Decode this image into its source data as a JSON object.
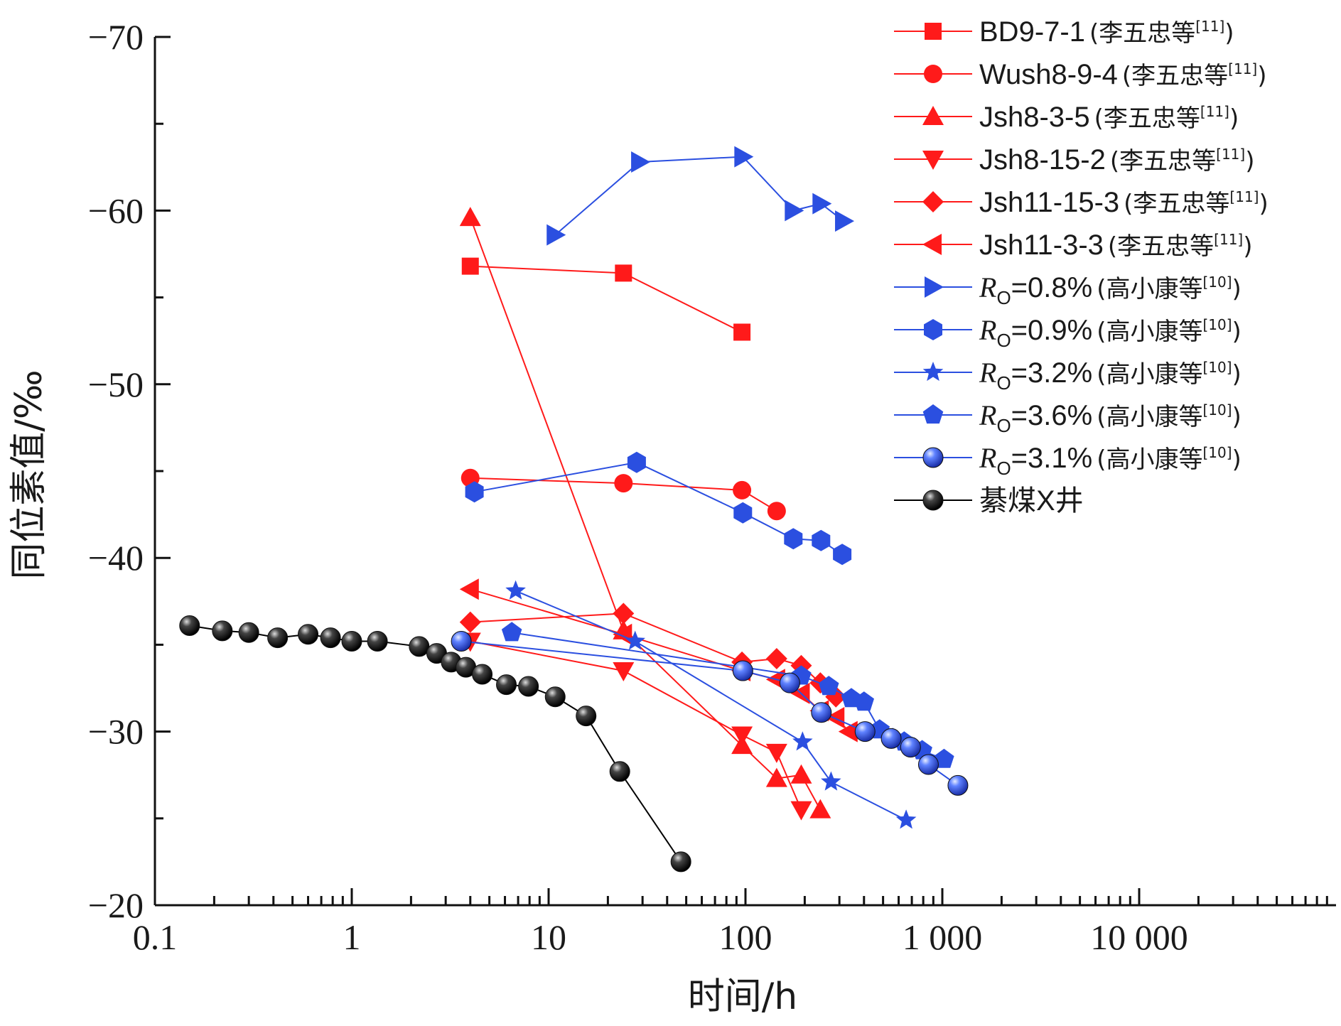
{
  "chart_data": {
    "type": "line",
    "xlabel": "时间/h",
    "ylabel": "同位素值/‰",
    "xscale": "log",
    "xlim": [
      0.1,
      100000
    ],
    "ylim": [
      -20,
      -70
    ],
    "y_inverted": true,
    "grid": false,
    "legend_position": "top-right",
    "x_tick_labels": [
      "0.1",
      "1",
      "10",
      "100",
      "1 000",
      "10 000"
    ],
    "y_tick_labels": [
      "−20",
      "−30",
      "−40",
      "−50",
      "−60",
      "−70"
    ],
    "colors": {
      "red": "#ff1a1a",
      "blue": "#2b4fe0",
      "black": "#000000"
    },
    "series": [
      {
        "label": "BD9-7-1",
        "ref": "(李五忠等[11])",
        "marker": "square",
        "color": "red",
        "x": [
          4,
          24,
          96
        ],
        "y": [
          -56.8,
          -56.4,
          -53.0
        ]
      },
      {
        "label": "Wush8-9-4",
        "ref": "(李五忠等[11])",
        "marker": "circle",
        "color": "red",
        "x": [
          4,
          24,
          96,
          144
        ],
        "y": [
          -44.6,
          -44.3,
          -43.9,
          -42.7
        ]
      },
      {
        "label": "Jsh8-3-5",
        "ref": "(李五忠等[11])",
        "marker": "triangle-up",
        "color": "red",
        "x": [
          4,
          24,
          96,
          144,
          192,
          240
        ],
        "y": [
          -59.6,
          -35.8,
          -29.2,
          -27.3,
          -27.5,
          -25.5
        ]
      },
      {
        "label": "Jsh8-15-2",
        "ref": "(李五忠等[11])",
        "marker": "triangle-down",
        "color": "red",
        "x": [
          4,
          24,
          96,
          144,
          192
        ],
        "y": [
          -35.2,
          -33.5,
          -29.8,
          -28.8,
          -25.5
        ]
      },
      {
        "label": "Jsh11-15-3",
        "ref": "(李五忠等[11])",
        "marker": "diamond",
        "color": "red",
        "x": [
          4,
          24,
          96,
          144,
          192,
          240,
          288
        ],
        "y": [
          -36.3,
          -36.8,
          -34.0,
          -34.2,
          -33.8,
          -32.8,
          -32.0
        ]
      },
      {
        "label": "Jsh11-3-3",
        "ref": "(李五忠等[11])",
        "marker": "triangle-left",
        "color": "red",
        "x": [
          4,
          24,
          96,
          144,
          192,
          240,
          288,
          336
        ],
        "y": [
          -38.2,
          -35.6,
          -33.5,
          -33.0,
          -32.2,
          -31.2,
          -30.8,
          -30.0
        ]
      },
      {
        "label": "=0.8%",
        "ref": "(高小康等[10])",
        "italic": "R",
        "sub": "O",
        "marker": "triangle-right",
        "color": "blue",
        "x": [
          10.8,
          29,
          97,
          175,
          242,
          315
        ],
        "y": [
          -58.6,
          -62.8,
          -63.1,
          -60.0,
          -60.4,
          -59.4
        ]
      },
      {
        "label": "=0.9%",
        "ref": "(高小康等[10])",
        "italic": "R",
        "sub": "O",
        "marker": "hexagon",
        "color": "blue",
        "x": [
          4.2,
          28,
          97,
          175,
          242,
          310
        ],
        "y": [
          -43.8,
          -45.5,
          -42.6,
          -41.1,
          -41.0,
          -40.2
        ]
      },
      {
        "label": "=3.2%",
        "ref": "(高小康等[10])",
        "italic": "R",
        "sub": "O",
        "marker": "star",
        "color": "blue",
        "x": [
          6.8,
          27.5,
          195,
          272,
          655
        ],
        "y": [
          -38.1,
          -35.2,
          -29.4,
          -27.1,
          -24.9
        ]
      },
      {
        "label": "=3.6%",
        "ref": "(高小康等[10])",
        "italic": "R",
        "sub": "O",
        "marker": "pentagon",
        "color": "blue",
        "x": [
          6.5,
          192,
          265,
          345,
          400,
          480,
          560,
          640,
          700,
          790,
          1020
        ],
        "y": [
          -35.7,
          -33.2,
          -32.6,
          -31.9,
          -31.7,
          -30.1,
          -29.6,
          -29.4,
          -29.1,
          -28.9,
          -28.4
        ]
      },
      {
        "label": "=3.1%",
        "ref": "(高小康等[10])",
        "italic": "R",
        "sub": "O",
        "marker": "sphere",
        "color": "blue",
        "x": [
          3.6,
          97,
          168,
          243,
          405,
          550,
          690,
          850,
          1200
        ],
        "y": [
          -35.2,
          -33.5,
          -32.8,
          -31.1,
          -30.0,
          -29.6,
          -29.1,
          -28.1,
          -26.9
        ]
      },
      {
        "label": "綦煤X井",
        "ref": "",
        "marker": "sphere",
        "color": "black",
        "x": [
          0.15,
          0.22,
          0.3,
          0.42,
          0.6,
          0.78,
          1.0,
          1.35,
          2.2,
          2.7,
          3.2,
          3.8,
          4.6,
          6.1,
          7.9,
          10.8,
          15.5,
          23,
          47
        ],
        "y": [
          -36.1,
          -35.8,
          -35.7,
          -35.4,
          -35.6,
          -35.4,
          -35.2,
          -35.2,
          -34.9,
          -34.5,
          -34.0,
          -33.7,
          -33.3,
          -32.7,
          -32.6,
          -32.0,
          -30.9,
          -27.7,
          -22.5
        ]
      }
    ]
  }
}
